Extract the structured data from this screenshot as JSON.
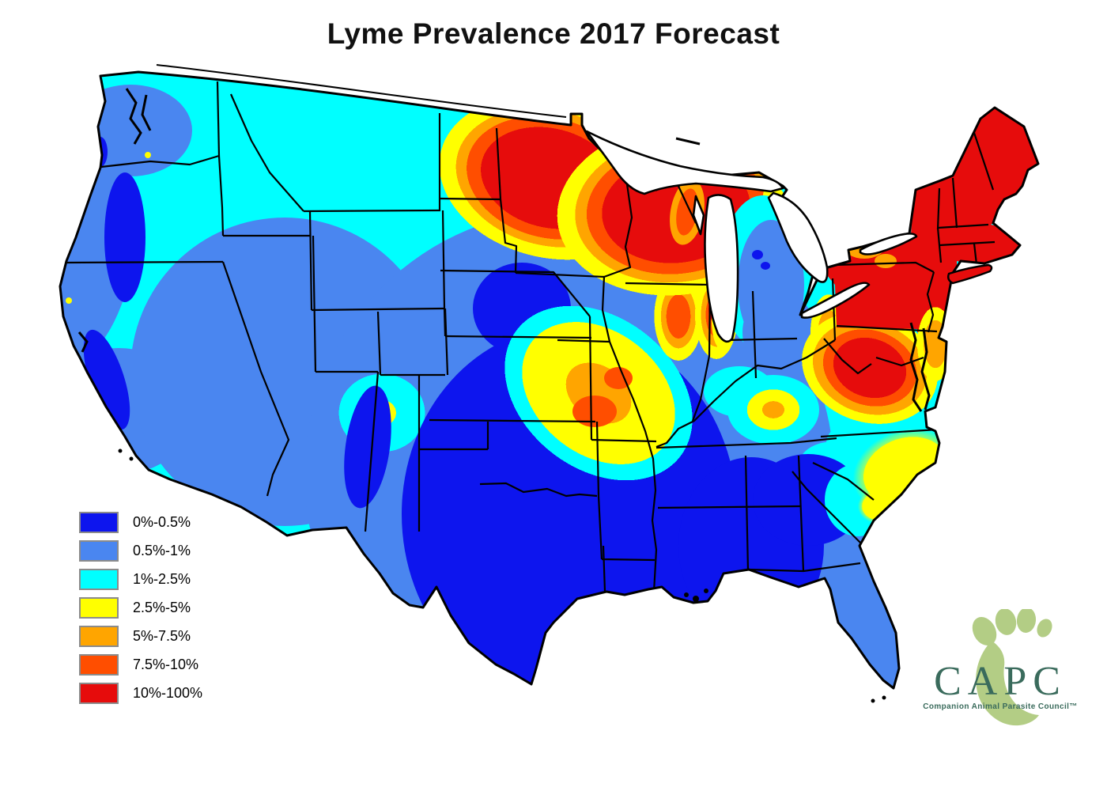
{
  "title": "Lyme Prevalence 2017 Forecast",
  "map": {
    "region": "Continental United States",
    "kind": "prevalence contour map",
    "palette": {
      "band1_dark_blue": "#0d15ee",
      "band2_blue": "#4a86f0",
      "band3_cyan": "#00ffff",
      "band4_yellow": "#ffff00",
      "band5_orange": "#ffa500",
      "band6_orangered": "#ff4e00",
      "band7_red": "#e60c0c",
      "border": "#000000",
      "water": "#ffffff"
    },
    "high_risk_areas": "Upper Midwest (MN, WI), Northeast (NY, PA, New England), Virginia/Mid-Atlantic",
    "low_risk_areas": "Texas, southern plains, lower Mississippi valley, inland Southeast, Pacific coast valleys"
  },
  "legend": {
    "items": [
      {
        "label": "0%-0.5%",
        "color": "#0d15ee"
      },
      {
        "label": "0.5%-1%",
        "color": "#4a86f0"
      },
      {
        "label": "1%-2.5%",
        "color": "#00ffff"
      },
      {
        "label": "2.5%-5%",
        "color": "#ffff00"
      },
      {
        "label": "5%-7.5%",
        "color": "#ffa500"
      },
      {
        "label": "7.5%-10%",
        "color": "#ff4e00"
      },
      {
        "label": "10%-100%",
        "color": "#e60c0c"
      }
    ]
  },
  "logo": {
    "wordmark": "CAPC",
    "tagline": "Companion Animal Parasite Council™",
    "text_color": "#3a6b5c",
    "paw_color": "#b3cd85"
  }
}
